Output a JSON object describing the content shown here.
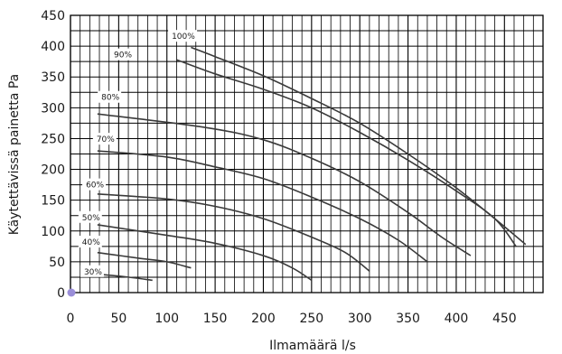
{
  "chart_data": {
    "type": "line",
    "xlabel": "Ilmamäärä l/s",
    "ylabel": "Käytettävissä painetta Pa",
    "xlim": [
      0,
      490
    ],
    "ylim": [
      0,
      450
    ],
    "x_ticks": [
      0,
      50,
      100,
      150,
      200,
      250,
      300,
      350,
      400,
      450
    ],
    "y_ticks": [
      0,
      50,
      100,
      150,
      200,
      250,
      300,
      350,
      400,
      450
    ],
    "grid": true,
    "x_minor_step": 10,
    "y_minor_step": 25,
    "series": [
      {
        "name": "30%",
        "points": [
          [
            28,
            30
          ],
          [
            55,
            26
          ],
          [
            85,
            20
          ]
        ]
      },
      {
        "name": "40%",
        "points": [
          [
            28,
            65
          ],
          [
            70,
            56
          ],
          [
            100,
            50
          ],
          [
            125,
            40
          ]
        ]
      },
      {
        "name": "50%",
        "points": [
          [
            28,
            110
          ],
          [
            100,
            93
          ],
          [
            150,
            80
          ],
          [
            200,
            60
          ],
          [
            230,
            40
          ],
          [
            250,
            20
          ]
        ]
      },
      {
        "name": "60%",
        "points": [
          [
            28,
            160
          ],
          [
            100,
            152
          ],
          [
            150,
            140
          ],
          [
            200,
            120
          ],
          [
            250,
            90
          ],
          [
            285,
            65
          ],
          [
            310,
            35
          ]
        ]
      },
      {
        "name": "70%",
        "points": [
          [
            28,
            230
          ],
          [
            100,
            220
          ],
          [
            150,
            204
          ],
          [
            200,
            185
          ],
          [
            250,
            155
          ],
          [
            300,
            120
          ],
          [
            340,
            85
          ],
          [
            370,
            50
          ]
        ]
      },
      {
        "name": "80%",
        "points": [
          [
            28,
            290
          ],
          [
            140,
            268
          ],
          [
            200,
            248
          ],
          [
            250,
            218
          ],
          [
            300,
            180
          ],
          [
            350,
            130
          ],
          [
            385,
            90
          ],
          [
            415,
            60
          ]
        ]
      },
      {
        "name": "90%",
        "points": [
          [
            110,
            378
          ],
          [
            150,
            355
          ],
          [
            200,
            330
          ],
          [
            250,
            300
          ],
          [
            300,
            260
          ],
          [
            350,
            215
          ],
          [
            400,
            165
          ],
          [
            440,
            120
          ],
          [
            462,
            75
          ]
        ]
      },
      {
        "name": "100%",
        "points": [
          [
            125,
            398
          ],
          [
            150,
            383
          ],
          [
            200,
            352
          ],
          [
            250,
            315
          ],
          [
            300,
            275
          ],
          [
            350,
            225
          ],
          [
            400,
            170
          ],
          [
            440,
            120
          ],
          [
            472,
            78
          ]
        ]
      }
    ],
    "labels": [
      {
        "text": "30%",
        "x": 14,
        "y": 34
      },
      {
        "text": "40%",
        "x": 12,
        "y": 82
      },
      {
        "text": "50%",
        "x": 12,
        "y": 122
      },
      {
        "text": "60%",
        "x": 16,
        "y": 175
      },
      {
        "text": "70%",
        "x": 27,
        "y": 249
      },
      {
        "text": "80%",
        "x": 32,
        "y": 317
      },
      {
        "text": "90%",
        "x": 45,
        "y": 386
      },
      {
        "text": "100%",
        "x": 105,
        "y": 416
      }
    ],
    "origin_marker_color": "#9a8ed8"
  }
}
